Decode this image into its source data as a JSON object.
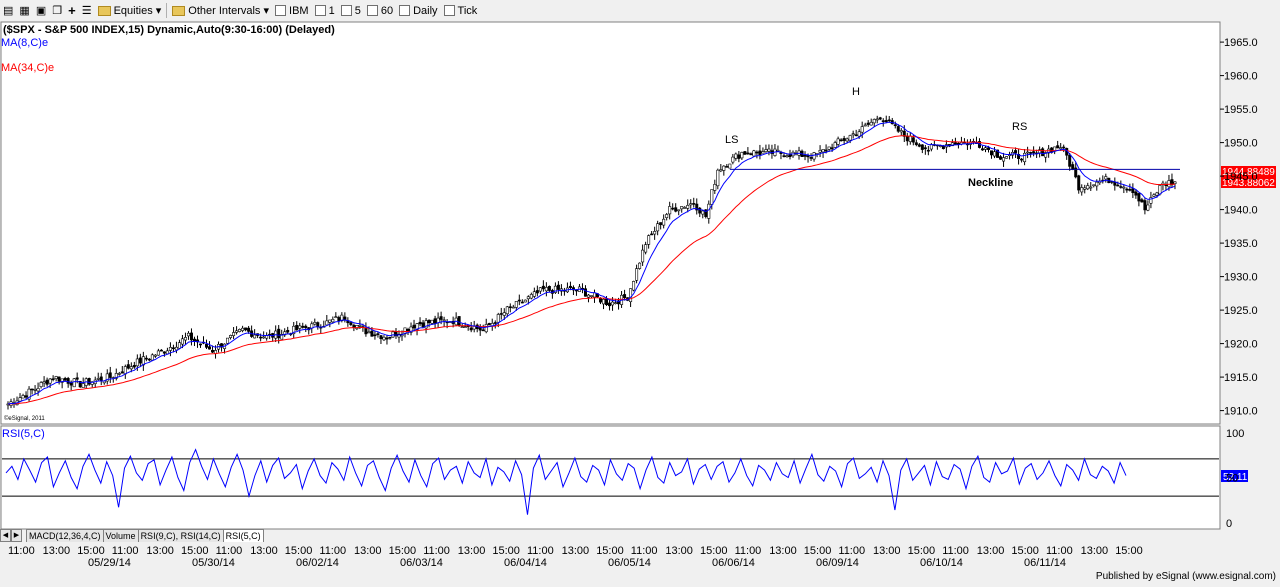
{
  "toolbar": {
    "equities_label": "Equities",
    "other_intervals_label": "Other Intervals",
    "symbol_label": "IBM",
    "intervals": [
      "1",
      "5",
      "60",
      "Daily",
      "Tick"
    ]
  },
  "chart": {
    "header": "($SPX - S&P 500 INDEX,15) Dynamic,Auto(9:30-16:00) (Delayed)",
    "ma8_label": "MA(8,C)e",
    "ma34_label": "MA(34,C)e",
    "watermark": "©eSignal, 2011",
    "annotations": {
      "left_shoulder": "LS",
      "head": "H",
      "right_shoulder": "RS",
      "neckline": "Neckline"
    },
    "price_badge_top": "1944.88489",
    "price_badge_bottom": "1943.88062",
    "rsi_label": "RSI(5,C)",
    "rsi_badge": "52.11",
    "tabs": [
      "MACD(12,36,4,C)",
      "Volume",
      "RSI(9,C), RSI(14,C)",
      "RSI(5,C)"
    ],
    "footer": "Published by eSignal (www.esignal.com)",
    "colors": {
      "ma8": "#0000ff",
      "ma34": "#ff0000",
      "price": "#000000",
      "rsi": "#0000ff",
      "badge_red": "#ff0000",
      "badge_blue": "#0000ff"
    }
  },
  "chart_data": {
    "type": "candlestick",
    "price_axis": {
      "ticks": [
        1910,
        1915,
        1920,
        1925,
        1930,
        1935,
        1940,
        1945,
        1950,
        1955,
        1960,
        1965
      ],
      "ylim": [
        1908,
        1968
      ]
    },
    "rsi_axis": {
      "ticks": [
        0,
        50,
        100
      ],
      "ylim": [
        0,
        100
      ],
      "guide_lines": [
        30,
        70
      ]
    },
    "x_time_labels": [
      "11:00",
      "13:00",
      "15:00",
      "11:00",
      "13:00",
      "15:00",
      "11:00",
      "13:00",
      "15:00",
      "11:00",
      "13:00",
      "15:00",
      "11:00",
      "13:00",
      "15:00",
      "11:00",
      "13:00",
      "15:00",
      "11:00",
      "13:00",
      "15:00",
      "11:00",
      "13:00",
      "15:00",
      "11:00",
      "13:00",
      "15:00",
      "11:00",
      "13:00",
      "15:00",
      "11:00",
      "13:00",
      "15:00"
    ],
    "x_date_labels": [
      "05/29/14",
      "05/30/14",
      "06/02/14",
      "06/03/14",
      "06/04/14",
      "06/05/14",
      "06/06/14",
      "06/09/14",
      "06/10/14",
      "06/11/14"
    ],
    "close_anchors": [
      [
        0,
        1911
      ],
      [
        8,
        1913
      ],
      [
        15,
        1915
      ],
      [
        24,
        1914
      ],
      [
        34,
        1915
      ],
      [
        42,
        1917
      ],
      [
        52,
        1919
      ],
      [
        60,
        1921
      ],
      [
        68,
        1919
      ],
      [
        78,
        1922
      ],
      [
        86,
        1921
      ],
      [
        95,
        1922
      ],
      [
        105,
        1923
      ],
      [
        112,
        1924
      ],
      [
        118,
        1922
      ],
      [
        126,
        1921
      ],
      [
        136,
        1923
      ],
      [
        148,
        1923.5
      ],
      [
        158,
        1922
      ],
      [
        166,
        1925
      ],
      [
        178,
        1928
      ],
      [
        190,
        1928
      ],
      [
        200,
        1926
      ],
      [
        206,
        1927
      ],
      [
        212,
        1935
      ],
      [
        220,
        1940
      ],
      [
        228,
        1941
      ],
      [
        232,
        1939
      ],
      [
        236,
        1946
      ],
      [
        244,
        1948.5
      ],
      [
        256,
        1948.5
      ],
      [
        268,
        1948
      ],
      [
        276,
        1950
      ],
      [
        284,
        1952
      ],
      [
        290,
        1954
      ],
      [
        298,
        1951
      ],
      [
        306,
        1949
      ],
      [
        314,
        1950
      ],
      [
        322,
        1950
      ],
      [
        330,
        1948
      ],
      [
        340,
        1948
      ],
      [
        350,
        1949.5
      ],
      [
        352,
        1948
      ],
      [
        356,
        1943.5
      ],
      [
        366,
        1944.5
      ],
      [
        374,
        1943
      ],
      [
        378,
        1940
      ],
      [
        384,
        1944
      ],
      [
        388,
        1944
      ]
    ],
    "neckline": {
      "price": 1946,
      "from_bar": 240,
      "to_bar": 400
    },
    "rsi_values": [
      55,
      62,
      48,
      70,
      58,
      45,
      66,
      72,
      40,
      55,
      68,
      50,
      38,
      62,
      75,
      58,
      44,
      67,
      52,
      18,
      60,
      73,
      55,
      47,
      65,
      69,
      42,
      58,
      72,
      50,
      36,
      66,
      80,
      62,
      48,
      70,
      54,
      40,
      61,
      75,
      58,
      30,
      52,
      68,
      45,
      63,
      71,
      49,
      55,
      64,
      38,
      57,
      70,
      52,
      44,
      66,
      59,
      47,
      72,
      55,
      41,
      63,
      68,
      50,
      36,
      60,
      74,
      57,
      45,
      69,
      52,
      40,
      65,
      71,
      48,
      58,
      62,
      44,
      67,
      55,
      50,
      70,
      42,
      61,
      56,
      46,
      68,
      53,
      10,
      60,
      74,
      48,
      57,
      66,
      40,
      55,
      71,
      51,
      45,
      63,
      58,
      42,
      69,
      54,
      47,
      65,
      60,
      38,
      58,
      72,
      50,
      44,
      66,
      52,
      56,
      70,
      43,
      59,
      64,
      48,
      62,
      67,
      45,
      55,
      70,
      52,
      41,
      63,
      58,
      47,
      66,
      54,
      50,
      68,
      44,
      60,
      75,
      53,
      46,
      62,
      57,
      40,
      65,
      71,
      49,
      54,
      61,
      45,
      68,
      52,
      15,
      58,
      70,
      47,
      55,
      63,
      42,
      67,
      51,
      48,
      64,
      59,
      38,
      62,
      73,
      50,
      45,
      66,
      54,
      57,
      71,
      43,
      60,
      65,
      48,
      55,
      68,
      52,
      41,
      64,
      58,
      47,
      70,
      53,
      49,
      62,
      57,
      44,
      66,
      52
    ]
  }
}
